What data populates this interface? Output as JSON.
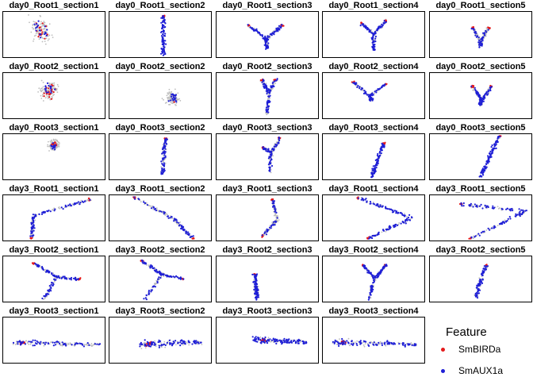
{
  "chart_data": {
    "type": "scatter",
    "panels": [
      {
        "title": "day0_Root1_section1"
      },
      {
        "title": "day0_Root1_section2"
      },
      {
        "title": "day0_Root1_section3"
      },
      {
        "title": "day0_Root1_section4"
      },
      {
        "title": "day0_Root1_section5"
      },
      {
        "title": "day0_Root2_section1"
      },
      {
        "title": "day0_Root2_section2"
      },
      {
        "title": "day0_Root2_section3"
      },
      {
        "title": "day0_Root2_section4"
      },
      {
        "title": "day0_Root2_section5"
      },
      {
        "title": "day0_Root3_section1"
      },
      {
        "title": "day0_Root3_section2"
      },
      {
        "title": "day0_Root3_section3"
      },
      {
        "title": "day0_Root3_section4"
      },
      {
        "title": "day0_Root3_section5"
      },
      {
        "title": "day3_Root1_section1"
      },
      {
        "title": "day3_Root1_section2"
      },
      {
        "title": "day3_Root1_section3"
      },
      {
        "title": "day3_Root1_section4"
      },
      {
        "title": "day3_Root1_section5"
      },
      {
        "title": "day3_Root2_section1"
      },
      {
        "title": "day3_Root2_section2"
      },
      {
        "title": "day3_Root2_section3"
      },
      {
        "title": "day3_Root2_section4"
      },
      {
        "title": "day3_Root2_section5"
      },
      {
        "title": "day3_Root3_section1"
      },
      {
        "title": "day3_Root3_section2"
      },
      {
        "title": "day3_Root3_section3"
      },
      {
        "title": "day3_Root3_section4"
      }
    ],
    "legend": {
      "title": "Feature",
      "position": "bottom-right",
      "items": [
        {
          "label": "SmBIRDa",
          "color": "#e41a1c"
        },
        {
          "label": "SmAUX1a",
          "color": "#1f1fd6"
        }
      ]
    },
    "background_color": "#bdbdbd"
  }
}
